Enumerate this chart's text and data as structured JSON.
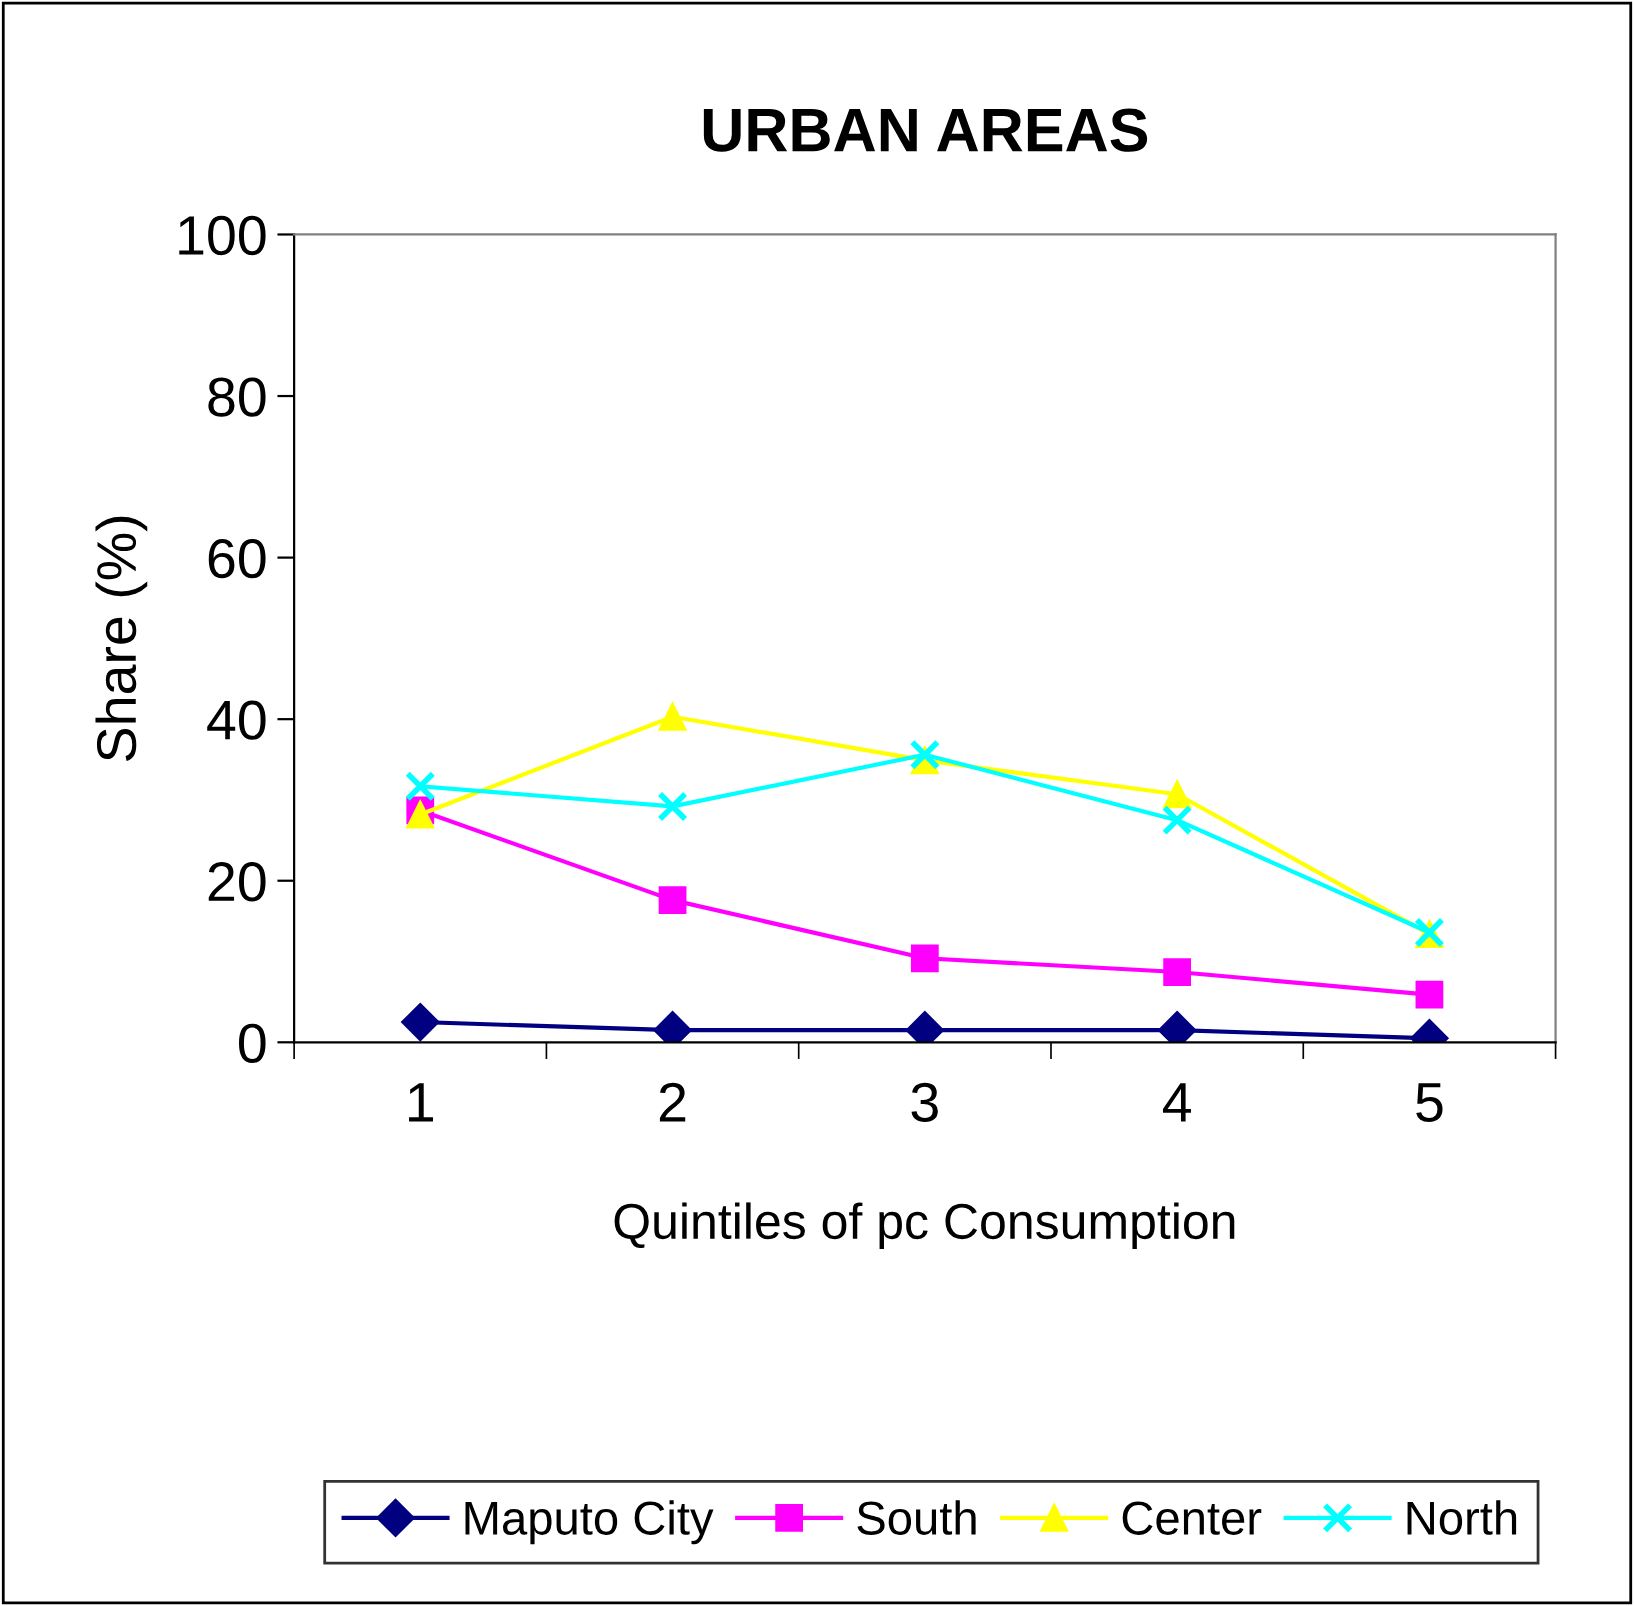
{
  "chart_data": {
    "type": "line",
    "title": "URBAN AREAS",
    "xlabel": "Quintiles of pc Consumption",
    "ylabel": "Share (%)",
    "categories": [
      "1",
      "2",
      "3",
      "4",
      "5"
    ],
    "series": [
      {
        "name": "Maputo City",
        "color": "#000080",
        "marker": "diamond",
        "values": [
          2.5,
          1.5,
          1.5,
          1.5,
          0.5
        ]
      },
      {
        "name": "South",
        "color": "#ff00ff",
        "marker": "square",
        "values": [
          28.7,
          17.6,
          10.4,
          8.7,
          5.9
        ]
      },
      {
        "name": "Center",
        "color": "#ffff00",
        "marker": "triangle",
        "values": [
          28.2,
          40.3,
          34.9,
          30.7,
          13.4
        ]
      },
      {
        "name": "North",
        "color": "#00ffff",
        "marker": "cross",
        "values": [
          31.7,
          29.2,
          35.6,
          27.5,
          13.6
        ]
      }
    ],
    "ylim": [
      0,
      100
    ],
    "yticks": [
      0,
      20,
      40,
      60,
      80,
      100
    ],
    "grid": false,
    "legend": "bottom"
  }
}
